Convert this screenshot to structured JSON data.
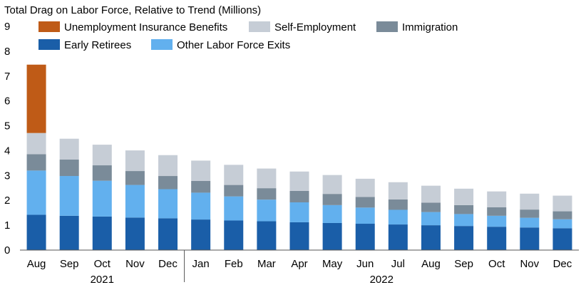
{
  "chart_data": {
    "type": "bar",
    "stacked": true,
    "title": "Total Drag on Labor Force, Relative to Trend (Millions)",
    "categories": [
      "Aug",
      "Sep",
      "Oct",
      "Nov",
      "Dec",
      "Jan",
      "Feb",
      "Mar",
      "Apr",
      "May",
      "Jun",
      "Jul",
      "Aug",
      "Sep",
      "Oct",
      "Nov",
      "Dec"
    ],
    "year_groups": [
      {
        "label": "2021",
        "start": 0,
        "end": 4
      },
      {
        "label": "2022",
        "start": 5,
        "end": 16
      }
    ],
    "ylim": [
      0,
      9
    ],
    "yticks": [
      "0",
      "1",
      "2",
      "3",
      "4",
      "5",
      "6",
      "7",
      "8",
      "9"
    ],
    "series": [
      {
        "name": "Early Retirees",
        "color": "#1a5ea8",
        "values": [
          1.42,
          1.38,
          1.35,
          1.31,
          1.28,
          1.23,
          1.19,
          1.16,
          1.12,
          1.09,
          1.06,
          1.03,
          1.0,
          0.97,
          0.94,
          0.91,
          0.88
        ]
      },
      {
        "name": "Other Labor Force Exits",
        "color": "#62b0ee",
        "values": [
          1.78,
          1.6,
          1.44,
          1.31,
          1.17,
          1.08,
          0.97,
          0.87,
          0.8,
          0.72,
          0.65,
          0.59,
          0.53,
          0.48,
          0.44,
          0.39,
          0.36
        ]
      },
      {
        "name": "Immigration",
        "color": "#7a8b99",
        "values": [
          0.66,
          0.66,
          0.62,
          0.56,
          0.53,
          0.47,
          0.46,
          0.46,
          0.46,
          0.45,
          0.43,
          0.42,
          0.38,
          0.36,
          0.34,
          0.33,
          0.32
        ]
      },
      {
        "name": "Self-Employment",
        "color": "#c6cdd6",
        "values": [
          0.85,
          0.84,
          0.83,
          0.83,
          0.84,
          0.82,
          0.81,
          0.79,
          0.78,
          0.76,
          0.73,
          0.69,
          0.68,
          0.66,
          0.64,
          0.64,
          0.63
        ]
      },
      {
        "name": "Unemployment Insurance Benefits",
        "color": "#bf5b17",
        "values": [
          2.75,
          0,
          0,
          0,
          0,
          0,
          0,
          0,
          0,
          0,
          0,
          0,
          0,
          0,
          0,
          0,
          0
        ]
      }
    ],
    "legend_order": [
      "Unemployment Insurance Benefits",
      "Self-Employment",
      "Immigration",
      "Early Retirees",
      "Other Labor Force Exits"
    ],
    "legend_position": "top-left",
    "grid": false
  }
}
